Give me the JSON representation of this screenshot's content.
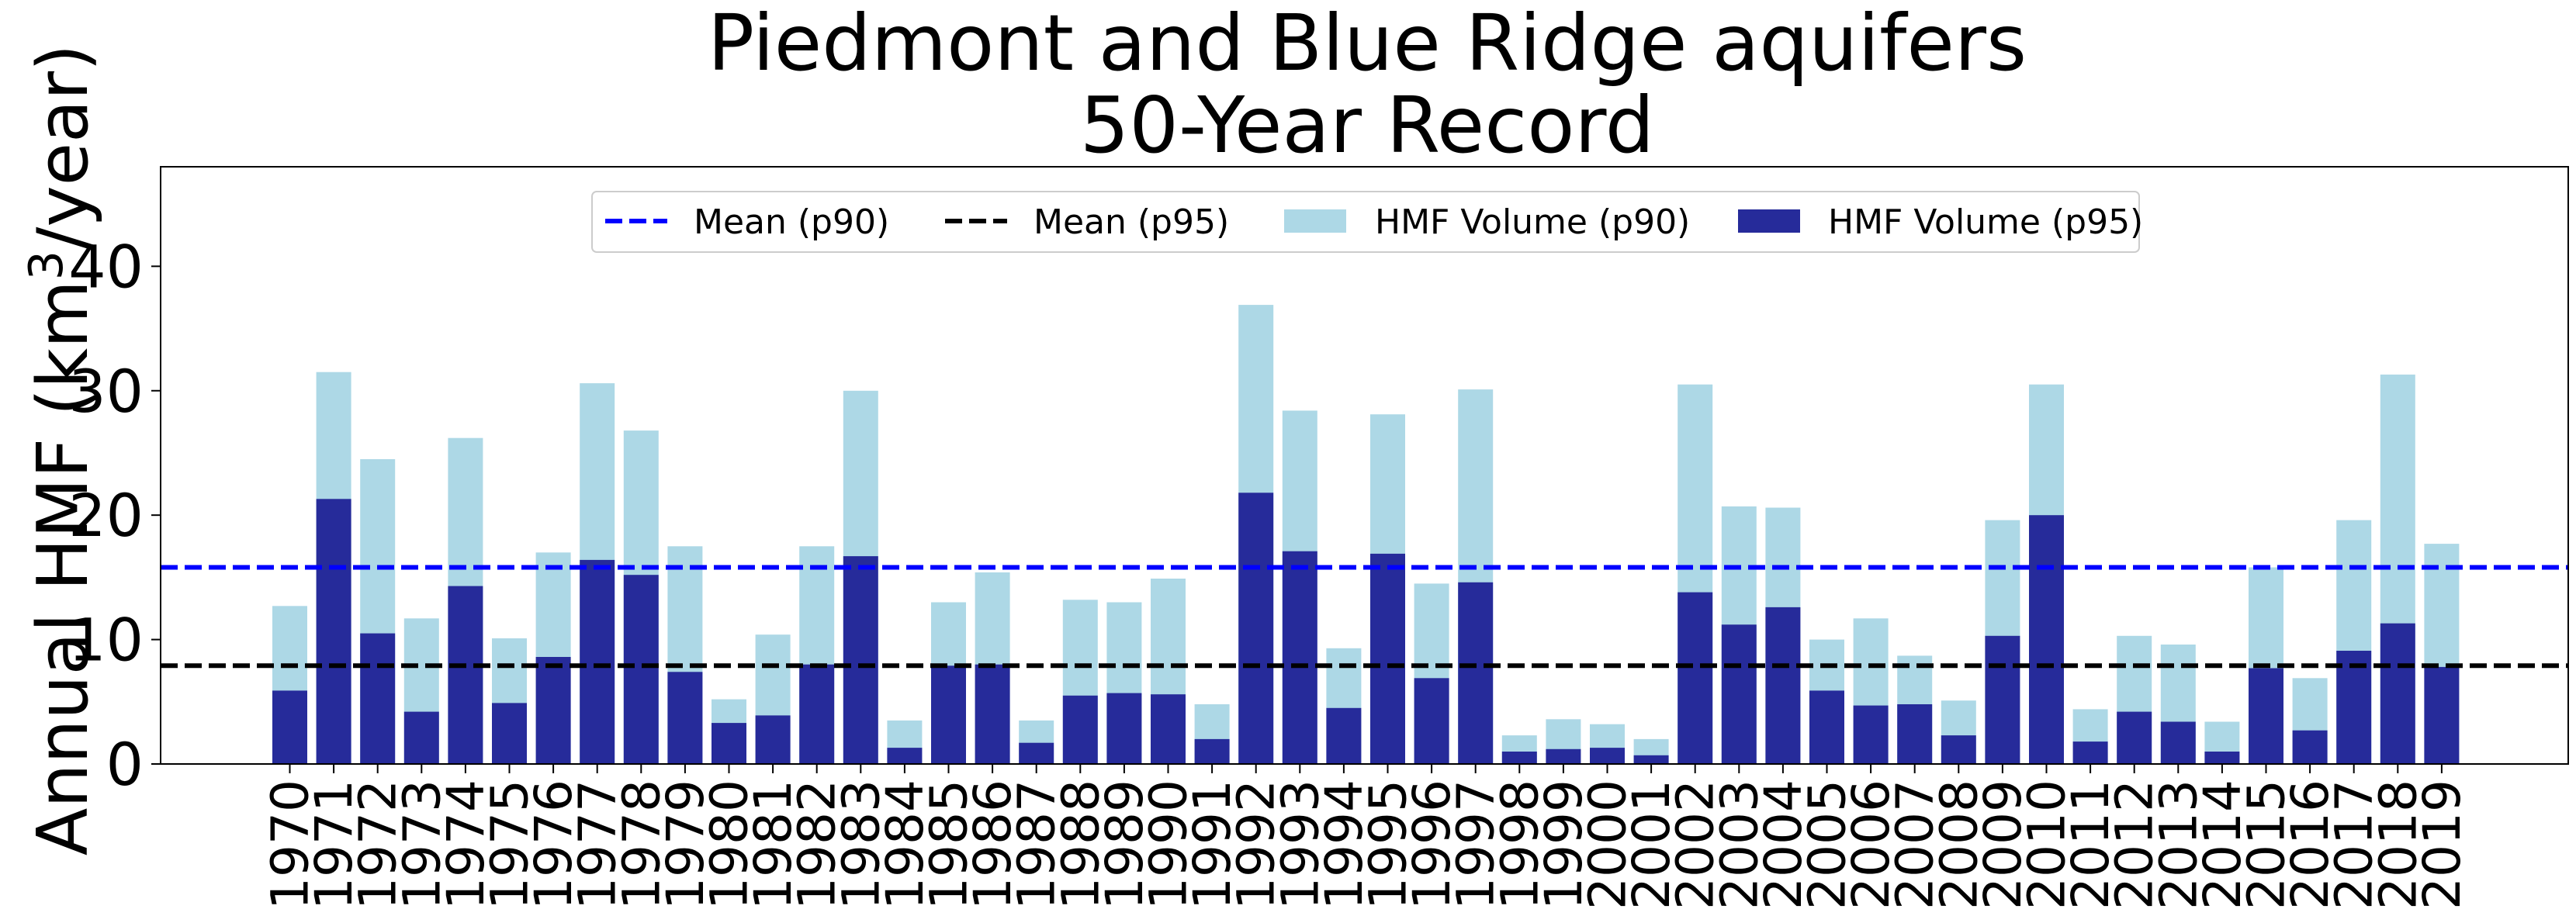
{
  "chart_data": {
    "type": "bar",
    "title_line1": "Piedmont and Blue Ridge aquifers",
    "title_line2": "50-Year Record",
    "ylabel_prefix": "Annual HMF (km",
    "ylabel_sup": "3",
    "ylabel_suffix": "/year)",
    "ylim": [
      0,
      48
    ],
    "yticks": [
      0,
      10,
      20,
      30,
      40
    ],
    "grid": false,
    "legend_placement": "top-center",
    "categories": [
      "1970",
      "1971",
      "1972",
      "1973",
      "1974",
      "1975",
      "1976",
      "1977",
      "1978",
      "1979",
      "1980",
      "1981",
      "1982",
      "1983",
      "1984",
      "1985",
      "1986",
      "1987",
      "1988",
      "1989",
      "1990",
      "1991",
      "1992",
      "1993",
      "1994",
      "1995",
      "1996",
      "1997",
      "1998",
      "1999",
      "2000",
      "2001",
      "2002",
      "2003",
      "2004",
      "2005",
      "2006",
      "2007",
      "2008",
      "2009",
      "2010",
      "2011",
      "2012",
      "2013",
      "2014",
      "2015",
      "2016",
      "2017",
      "2018",
      "2019"
    ],
    "series": [
      {
        "name": "HMF Volume (p90)",
        "color": "#add8e6",
        "values": [
          12.7,
          31.5,
          24.5,
          11.7,
          26.2,
          10.1,
          17.0,
          30.6,
          26.8,
          17.5,
          5.2,
          10.4,
          17.5,
          30.0,
          3.5,
          13.0,
          15.4,
          3.5,
          13.2,
          13.0,
          14.9,
          4.8,
          36.9,
          28.4,
          9.3,
          28.1,
          14.5,
          30.1,
          2.3,
          3.6,
          3.2,
          2.0,
          30.5,
          20.7,
          20.6,
          10.0,
          11.7,
          8.7,
          5.1,
          19.6,
          30.5,
          4.4,
          10.3,
          9.6,
          3.4,
          15.8,
          6.9,
          19.6,
          31.3,
          17.7
        ]
      },
      {
        "name": "HMF Volume (p95)",
        "color": "#262b9a",
        "values": [
          5.9,
          21.3,
          10.5,
          4.2,
          14.3,
          4.9,
          8.6,
          16.4,
          15.2,
          7.4,
          3.3,
          3.9,
          8.0,
          16.7,
          1.3,
          7.9,
          8.0,
          1.7,
          5.5,
          5.7,
          5.6,
          2.0,
          21.8,
          17.1,
          4.5,
          16.9,
          6.9,
          14.6,
          1.0,
          1.2,
          1.3,
          0.7,
          13.8,
          11.2,
          12.6,
          5.9,
          4.7,
          4.8,
          2.3,
          10.3,
          20.0,
          1.8,
          4.2,
          3.4,
          1.0,
          7.7,
          2.7,
          9.1,
          11.3,
          7.8
        ]
      }
    ],
    "mean_lines": [
      {
        "name": "Mean (p90)",
        "value": 15.8,
        "color": "#0000ff",
        "style": "dashed"
      },
      {
        "name": "Mean (p95)",
        "value": 7.9,
        "color": "#000000",
        "style": "dashed"
      }
    ]
  }
}
